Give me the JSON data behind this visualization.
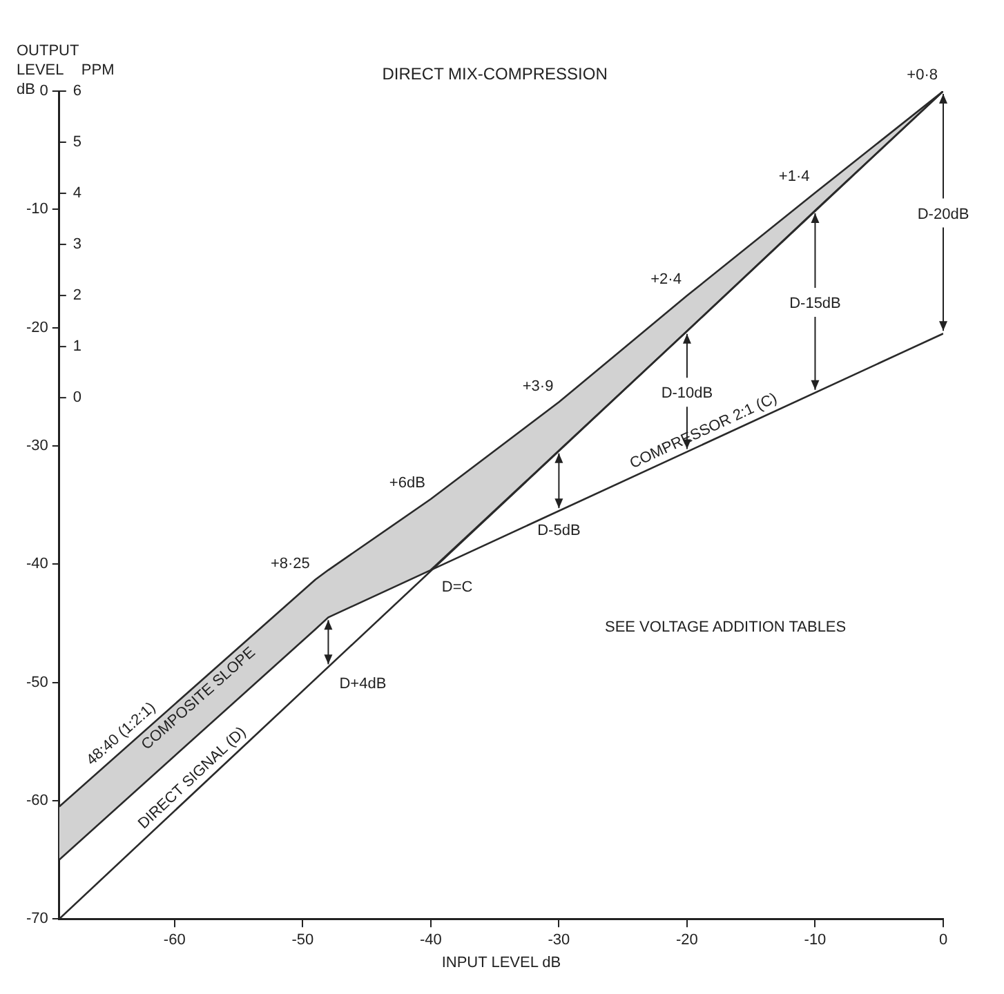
{
  "chart_data": {
    "type": "line",
    "title": "DIRECT MIX-COMPRESSION",
    "xlabel": "INPUT LEVEL dB",
    "ylabel": "OUTPUT LEVEL dB",
    "y2label": "PPM",
    "xlim": [
      -69,
      0
    ],
    "xticks": [
      -60,
      -50,
      -40,
      -30,
      -20,
      -10,
      0
    ],
    "ylim": [
      -70,
      0
    ],
    "yticks": [
      -70,
      -60,
      -50,
      -40,
      -30,
      -20,
      -10,
      0
    ],
    "y2lim": [
      -10.2,
      6
    ],
    "y2ticks": [
      0,
      1,
      2,
      3,
      4,
      5,
      6
    ],
    "grid": false,
    "legend": false,
    "marker": "none",
    "line_style": "solid",
    "series": [
      {
        "name": "COMPOSITE SLOPE",
        "color": "#2a2a2a",
        "x": [
          -69,
          -49,
          -48,
          -40,
          -30,
          -20,
          -10,
          0
        ],
        "values": [
          -60.5,
          -41.3,
          -40.5,
          -34.5,
          -26.3,
          -17.3,
          -8.6,
          0
        ],
        "lower": [
          -65,
          -45.5,
          -44.5,
          -40.5,
          -30.4,
          -20.3,
          -10.1,
          0
        ],
        "upper": [
          -60.5,
          -41.3,
          -40.5,
          -34.5,
          -26.3,
          -17.3,
          -8.6,
          0
        ]
      },
      {
        "name": "DIRECT SIGNAL (D)",
        "color": "#2a2a2a",
        "x": [
          -69,
          0
        ],
        "values": [
          -70,
          0
        ]
      },
      {
        "name": "COMPRESSOR 2:1 (C)",
        "color": "#2a2a2a",
        "x": [
          -40,
          0
        ],
        "values": [
          -40.5,
          -20.5
        ]
      }
    ],
    "annotations": [
      {
        "text": "+8·25",
        "x": -49,
        "y": -41.3
      },
      {
        "text": "+6dB",
        "x": -40,
        "y": -34.5
      },
      {
        "text": "+3·9",
        "x": -30,
        "y": -26.3
      },
      {
        "text": "+2·4",
        "x": -20,
        "y": -17.3
      },
      {
        "text": "+1·4",
        "x": -10,
        "y": -8.6
      },
      {
        "text": "+0·8",
        "x": 0,
        "y": 0
      },
      {
        "text": "D+4dB",
        "x": -48,
        "y": -48.7
      },
      {
        "text": "D=C",
        "x": -40,
        "y": -40.5
      },
      {
        "text": "D-5dB",
        "x": -30,
        "y": -35.5
      },
      {
        "text": "D-10dB",
        "x": -20,
        "y": -30.5
      },
      {
        "text": "D-15dB",
        "x": -10,
        "y": -25.5
      },
      {
        "text": "D-20dB",
        "x": 0,
        "y": -20.5
      },
      "SEE VOLTAGE ADDITION TABLES",
      "48:40 (1:2:1)"
    ]
  }
}
